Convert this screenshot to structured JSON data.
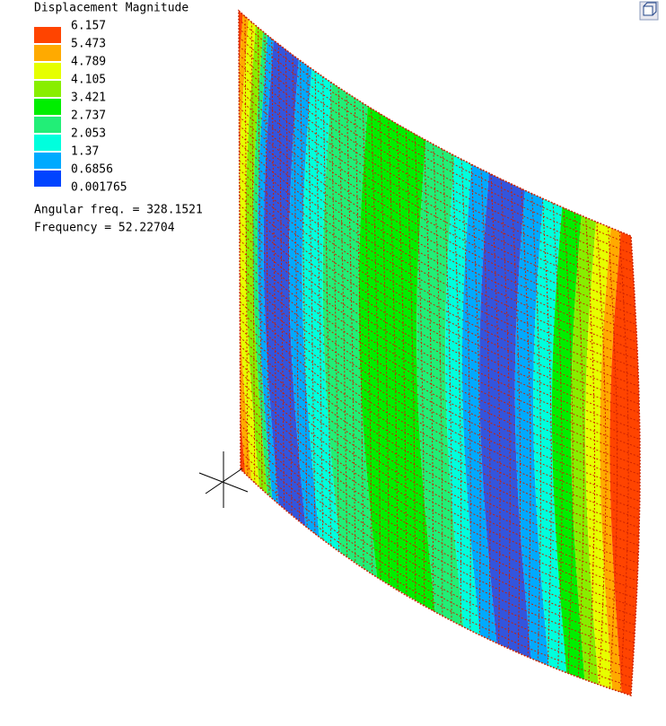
{
  "legend": {
    "title": "Displacement Magnitude",
    "entries": [
      {
        "label": "6.157",
        "color": "#ff4400"
      },
      {
        "label": "5.473",
        "color": "#ffaa00"
      },
      {
        "label": "4.789",
        "color": "#e6ff00"
      },
      {
        "label": "4.105",
        "color": "#88ee00"
      },
      {
        "label": "3.421",
        "color": "#00ee00"
      },
      {
        "label": "2.737",
        "color": "#22ee77"
      },
      {
        "label": "2.053",
        "color": "#00ffdd"
      },
      {
        "label": "1.37",
        "color": "#00aaff"
      },
      {
        "label": "0.6856",
        "color": "#0044ff"
      },
      {
        "label": "0.001765",
        "color": null
      }
    ]
  },
  "info": {
    "angular_freq": "Angular freq. = 328.1521",
    "frequency": "Frequency = 52.22704"
  }
}
